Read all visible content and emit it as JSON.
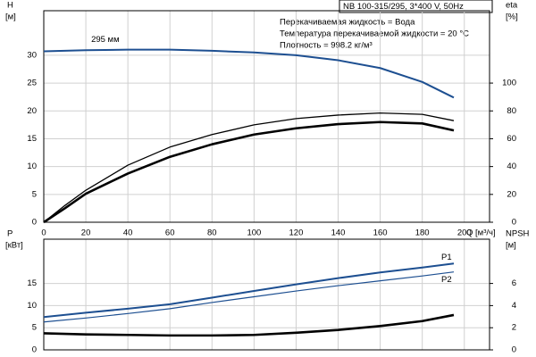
{
  "chart_data": [
    {
      "type": "line",
      "title": "NB 100-315/295, 3*400 V, 50Hz",
      "annotations": [
        "Перекачиваемая жидкость = Вода",
        "Температура перекачиваемой жидкости = 20 °C",
        "Плотность = 998.2 кг/м³"
      ],
      "ylabel": "H",
      "yunit": "[м]",
      "y2label": "eta",
      "y2unit": "[%]",
      "xlabel": "Q [м³/ч]",
      "xlim": [
        0,
        212
      ],
      "xticks": [
        0,
        20,
        40,
        60,
        80,
        100,
        120,
        140,
        160,
        180,
        200
      ],
      "ylim": [
        0,
        38
      ],
      "yticks": [
        0,
        5,
        10,
        15,
        20,
        25,
        30
      ],
      "y2lim": [
        0,
        152
      ],
      "y2ticks": [
        0,
        20,
        40,
        60,
        80,
        100
      ],
      "grid": true,
      "series": [
        {
          "name": "295 мм",
          "color": "#1d4f91",
          "x": [
            0,
            20,
            40,
            60,
            80,
            100,
            120,
            140,
            160,
            180,
            195
          ],
          "values": [
            30.7,
            30.9,
            31.0,
            31.0,
            30.8,
            30.5,
            30.0,
            29.1,
            27.7,
            25.2,
            22.4
          ]
        },
        {
          "color": "#000000",
          "axis": "y2",
          "x": [
            0,
            10,
            20,
            40,
            60,
            80,
            100,
            120,
            140,
            160,
            180,
            195
          ],
          "values": [
            0,
            12,
            23,
            41,
            54,
            63,
            70,
            74.5,
            77,
            78.5,
            77.5,
            73
          ]
        },
        {
          "color": "#000000",
          "axis": "y2",
          "x": [
            0,
            10,
            20,
            40,
            60,
            80,
            100,
            120,
            140,
            160,
            180,
            195
          ],
          "values": [
            0,
            10,
            20.5,
            35,
            47,
            56,
            63,
            67.5,
            70.5,
            72,
            71,
            66
          ]
        }
      ]
    },
    {
      "type": "line",
      "ylabel": "P",
      "yunit": "[кВт]",
      "y2label": "NPSH",
      "y2unit": "[м]",
      "xlim": [
        0,
        212
      ],
      "xticks": [
        0,
        20,
        40,
        60,
        80,
        100,
        120,
        140,
        160,
        180,
        200
      ],
      "ylim": [
        0,
        25
      ],
      "yticks": [
        0,
        5,
        10,
        15
      ],
      "y2lim": [
        0,
        10
      ],
      "y2ticks": [
        0,
        2,
        4,
        6
      ],
      "grid": true,
      "series": [
        {
          "name": "P1",
          "color": "#1d4f91",
          "x": [
            0,
            20,
            40,
            60,
            80,
            100,
            120,
            140,
            160,
            180,
            195
          ],
          "values": [
            7.4,
            8.4,
            9.3,
            10.3,
            11.8,
            13.3,
            14.8,
            16.2,
            17.5,
            18.6,
            19.5
          ]
        },
        {
          "name": "P2",
          "color": "#1d4f91",
          "x": [
            0,
            20,
            40,
            60,
            80,
            100,
            120,
            140,
            160,
            180,
            195
          ],
          "values": [
            6.3,
            7.2,
            8.2,
            9.3,
            10.7,
            12.0,
            13.3,
            14.5,
            15.6,
            16.7,
            17.6
          ]
        },
        {
          "color": "#000000",
          "axis": "y2",
          "x": [
            0,
            20,
            40,
            60,
            80,
            100,
            120,
            140,
            160,
            180,
            195
          ],
          "values": [
            1.5,
            1.4,
            1.35,
            1.3,
            1.3,
            1.35,
            1.55,
            1.8,
            2.15,
            2.6,
            3.15
          ]
        }
      ]
    }
  ]
}
